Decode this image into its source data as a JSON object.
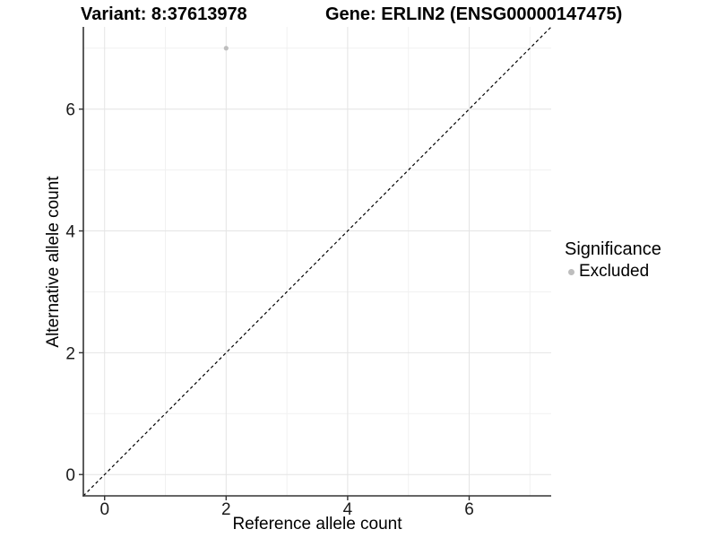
{
  "chart_data": {
    "type": "scatter",
    "title_left": "Variant: 8:37613978",
    "title_right": "Gene: ERLIN2 (ENSG00000147475)",
    "xlabel": "Reference allele count",
    "ylabel": "Alternative allele count",
    "xlim": [
      -0.35,
      7.35
    ],
    "ylim": [
      -0.35,
      7.35
    ],
    "x_major_ticks": [
      0,
      2,
      4,
      6
    ],
    "y_major_ticks": [
      0,
      2,
      4,
      6
    ],
    "x_tick_labels": [
      "0",
      "2",
      "4",
      "6"
    ],
    "y_tick_labels": [
      "0",
      "2",
      "4",
      "6"
    ],
    "x_minor_gridlines": [
      1,
      3,
      5,
      7
    ],
    "y_minor_gridlines": [
      1,
      3,
      5,
      7
    ],
    "grid": "major and minor, light gray on white",
    "series": [
      {
        "name": "Excluded",
        "color": "#bebebe",
        "points": [
          {
            "x": 2,
            "y": 7
          }
        ]
      }
    ],
    "reference_line": {
      "type": "identity y=x",
      "style": "dashed",
      "color": "#000000",
      "from": [
        -0.35,
        -0.35
      ],
      "to": [
        7.35,
        7.35
      ]
    },
    "legend": {
      "title": "Significance",
      "position": "right",
      "items": [
        {
          "label": "Excluded",
          "marker": "circle",
          "color": "#bebebe"
        }
      ]
    }
  },
  "colors": {
    "background": "#ffffff",
    "axis_line": "#333333",
    "major_grid": "#e4e4e4",
    "minor_grid": "#f1f1f1",
    "tick_text": "#1a1a1a",
    "point": "#bebebe"
  }
}
